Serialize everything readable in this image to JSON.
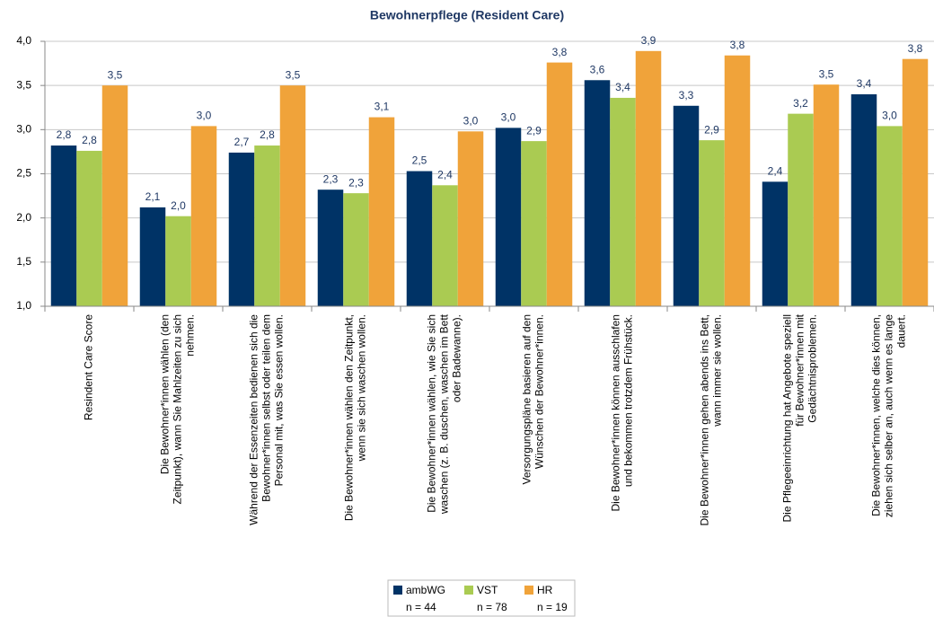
{
  "chart_data": {
    "type": "bar",
    "title": "Bewohnerpflege (Resident Care)",
    "categories": [
      [
        "Resindent Care Score"
      ],
      [
        "Die Bewohner*innen wählen (den",
        "Zeitpunkt), wann Sie Mahlzeiten zu sich",
        "nehmen."
      ],
      [
        "Während der Essenzeiten bedienen sich die",
        "Bewohner*innen selbst oder teilen dem",
        "Personal mit, was Sie essen wollen."
      ],
      [
        "Die Bewohner*innen wählen den Zeitpunkt,",
        "wenn sie sich waschen wollen."
      ],
      [
        "Die Bewohner*innen wählen, wie Sie sich",
        "waschen (z. B. duschen, waschen im Bett",
        "oder Badewanne)."
      ],
      [
        "Versorgungspläne basieren auf den",
        "Wünschen der Bewohner*innen."
      ],
      [
        "Die Bewohner*innen können ausschlafen",
        "und bekommen trotzdem Frühstück."
      ],
      [
        "Die Bewohner*innen gehen abends ins Bett,",
        "wann immer sie wollen."
      ],
      [
        "Die Pflegeeinrichtung hat Angebote speziell",
        "für Bewohner*innen mit",
        "Gedächtnisproblemen."
      ],
      [
        "Die Bewohner*innen, welche dies können,",
        "ziehen sich selber an, auch wenn es lange",
        "dauert."
      ]
    ],
    "series": [
      {
        "name": "ambWG",
        "note": "n = 44",
        "color": "#003366",
        "values": [
          2.82,
          2.12,
          2.74,
          2.32,
          2.53,
          3.02,
          3.56,
          3.27,
          2.41,
          3.4
        ],
        "value_labels": [
          "2,8",
          "2,1",
          "2,7",
          "2,3",
          "2,5",
          "3,0",
          "3,6",
          "3,3",
          "2,4",
          "3,4"
        ]
      },
      {
        "name": "VST",
        "note": "n = 78",
        "color": "#aacb52",
        "values": [
          2.76,
          2.02,
          2.82,
          2.28,
          2.37,
          2.87,
          3.36,
          2.88,
          3.18,
          3.04
        ],
        "value_labels": [
          "2,8",
          "2,0",
          "2,8",
          "2,3",
          "2,4",
          "2,9",
          "3,4",
          "2,9",
          "3,2",
          "3,0"
        ]
      },
      {
        "name": "HR",
        "note": "n = 19",
        "color": "#f0a33a",
        "values": [
          3.5,
          3.04,
          3.5,
          3.14,
          2.98,
          3.76,
          3.89,
          3.84,
          3.51,
          3.8
        ],
        "value_labels": [
          "3,5",
          "3,0",
          "3,5",
          "3,1",
          "3,0",
          "3,8",
          "3,9",
          "3,8",
          "3,5",
          "3,8"
        ]
      }
    ],
    "ylim": [
      1.0,
      4.0
    ],
    "yticks": [
      {
        "value": 1.0,
        "label": "1,0"
      },
      {
        "value": 1.5,
        "label": "1,5"
      },
      {
        "value": 2.0,
        "label": "2,0"
      },
      {
        "value": 2.5,
        "label": "2,5"
      },
      {
        "value": 3.0,
        "label": "3,0"
      },
      {
        "value": 3.5,
        "label": "3,5"
      },
      {
        "value": 4.0,
        "label": "4,0"
      }
    ],
    "grid": true,
    "legend": "bottom"
  }
}
